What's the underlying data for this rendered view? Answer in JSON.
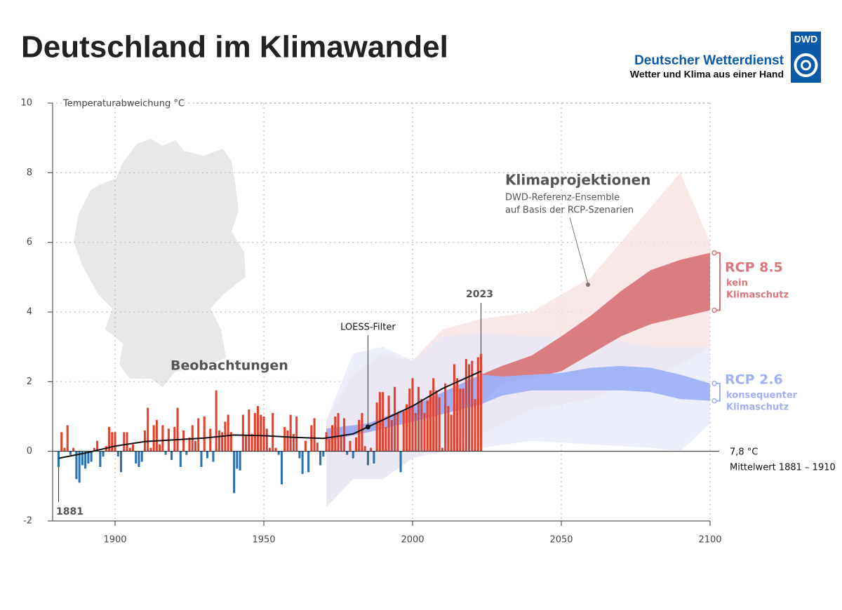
{
  "logo": {
    "abbr": "DWD",
    "name": "Deutscher Wetterdienst",
    "slogan": "Wetter und Klima aus einer Hand"
  },
  "chart_data": {
    "type": "bar",
    "title": "Deutschland im Klimawandel",
    "ylabel": "Temperaturabweichung °C",
    "x": [
      1881,
      1882,
      1883,
      1884,
      1885,
      1886,
      1887,
      1888,
      1889,
      1890,
      1891,
      1892,
      1893,
      1894,
      1895,
      1896,
      1897,
      1898,
      1899,
      1900,
      1901,
      1902,
      1903,
      1904,
      1905,
      1906,
      1907,
      1908,
      1909,
      1910,
      1911,
      1912,
      1913,
      1914,
      1915,
      1916,
      1917,
      1918,
      1919,
      1920,
      1921,
      1922,
      1923,
      1924,
      1925,
      1926,
      1927,
      1928,
      1929,
      1930,
      1931,
      1932,
      1933,
      1934,
      1935,
      1936,
      1937,
      1938,
      1939,
      1940,
      1941,
      1942,
      1943,
      1944,
      1945,
      1946,
      1947,
      1948,
      1949,
      1950,
      1951,
      1952,
      1953,
      1954,
      1955,
      1956,
      1957,
      1958,
      1959,
      1960,
      1961,
      1962,
      1963,
      1964,
      1965,
      1966,
      1967,
      1968,
      1969,
      1970,
      1971,
      1972,
      1973,
      1974,
      1975,
      1976,
      1977,
      1978,
      1979,
      1980,
      1981,
      1982,
      1983,
      1984,
      1985,
      1986,
      1987,
      1988,
      1989,
      1990,
      1991,
      1992,
      1993,
      1994,
      1995,
      1996,
      1997,
      1998,
      1999,
      2000,
      2001,
      2002,
      2003,
      2004,
      2005,
      2006,
      2007,
      2008,
      2009,
      2010,
      2011,
      2012,
      2013,
      2014,
      2015,
      2016,
      2017,
      2018,
      2019,
      2020,
      2021,
      2022,
      2023
    ],
    "values": [
      -0.45,
      0.55,
      0.1,
      0.75,
      -0.1,
      0.1,
      -0.8,
      -0.9,
      -0.4,
      -0.5,
      -0.35,
      -0.3,
      0.1,
      0.3,
      -0.45,
      -0.15,
      0.15,
      0.7,
      0.55,
      0.55,
      -0.15,
      -0.6,
      0.55,
      0.55,
      0.1,
      0.2,
      -0.35,
      -0.45,
      -0.3,
      0.6,
      1.25,
      0.1,
      0.75,
      0.9,
      0.2,
      0.75,
      -0.1,
      0.65,
      -0.25,
      0.7,
      1.25,
      -0.45,
      0.6,
      -0.1,
      0.4,
      0.75,
      0.3,
      0.95,
      -0.45,
      1.0,
      -0.2,
      0.65,
      -0.3,
      1.75,
      0.6,
      0.55,
      0.85,
      1.05,
      0.55,
      -1.2,
      -0.5,
      -0.55,
      1.05,
      0.45,
      1.2,
      0.5,
      1.1,
      1.3,
      1.05,
      1.0,
      0.65,
      0.1,
      1.1,
      0.1,
      -0.1,
      -0.95,
      0.7,
      0.6,
      1.05,
      0.5,
      1.0,
      -0.2,
      -0.65,
      0.3,
      -0.6,
      0.75,
      0.95,
      0.25,
      -0.4,
      -0.15,
      0.55,
      0.35,
      0.75,
      1.0,
      1.1,
      0.45,
      0.95,
      -0.1,
      0.3,
      -0.2,
      0.4,
      0.9,
      1.1,
      0.15,
      -0.4,
      0.1,
      -0.35,
      1.4,
      1.7,
      1.7,
      0.7,
      1.6,
      0.9,
      1.85,
      1.1,
      -0.6,
      1.15,
      1.35,
      1.8,
      2.1,
      1.1,
      1.85,
      1.5,
      1.1,
      1.45,
      1.75,
      2.1,
      1.75,
      1.55,
      0.1,
      1.95,
      1.3,
      1.05,
      2.5,
      2.1,
      1.8,
      1.8,
      2.65,
      2.5,
      2.6,
      1.5,
      2.7,
      2.8
    ],
    "positive_color": "#e2412e",
    "negative_color": "#2b70b1",
    "xlim": [
      1879,
      2100
    ],
    "ylim": [
      -2,
      10
    ],
    "xticks": [
      1900,
      1950,
      2000,
      2050,
      2100
    ],
    "yticks": [
      -2,
      0,
      2,
      4,
      6,
      8,
      10
    ],
    "grid": true,
    "loess": {
      "name": "LOESS-Filter",
      "color": "#111111",
      "x": [
        1881,
        1890,
        1900,
        1910,
        1920,
        1930,
        1940,
        1950,
        1960,
        1970,
        1980,
        1985,
        1990,
        2000,
        2010,
        2023
      ],
      "values": [
        -0.2,
        -0.05,
        0.15,
        0.28,
        0.33,
        0.38,
        0.47,
        0.45,
        0.4,
        0.37,
        0.5,
        0.7,
        0.9,
        1.3,
        1.8,
        2.3
      ]
    },
    "projections": {
      "title": "Klimaprojektionen",
      "subtitle": [
        "DWD-Referenz-Ensemble",
        "auf Basis der RCP-Szenarien"
      ],
      "x": [
        1971,
        1985,
        2000,
        2023,
        2030,
        2040,
        2050,
        2060,
        2070,
        2080,
        2090,
        2100
      ],
      "range_x": [
        1971,
        1980,
        1990,
        2000,
        2010,
        2023,
        2040,
        2060,
        2080,
        2090,
        2100
      ],
      "scenarios": [
        {
          "name": "RCP 8.5",
          "description": [
            "kein",
            "Klimaschutz"
          ],
          "color": "#d9777a",
          "range_color": "#f7e0e0",
          "high": [
            0.65,
            0.8,
            1.3,
            2.2,
            2.45,
            2.75,
            3.3,
            3.9,
            4.6,
            5.2,
            5.5,
            5.7
          ],
          "low": [
            0.3,
            0.55,
            0.85,
            1.35,
            1.95,
            2.1,
            2.3,
            2.8,
            3.3,
            3.65,
            3.85,
            4.05
          ],
          "range_max": [
            0.9,
            2.2,
            2.8,
            2.6,
            3.5,
            3.8,
            4.0,
            5.0,
            7.0,
            8.0,
            6.0
          ],
          "range_min": [
            -1.6,
            -0.8,
            -0.8,
            -0.2,
            0.2,
            0.5,
            1.2,
            1.5,
            2.2,
            2.5,
            3.0
          ]
        },
        {
          "name": "RCP 2.6",
          "description": [
            "konsequenter",
            "Klimaschutz"
          ],
          "color": "#9fb1f5",
          "range_color": "#e6e8f8",
          "high": [
            0.65,
            0.8,
            1.3,
            2.2,
            2.15,
            2.2,
            2.25,
            2.4,
            2.45,
            2.4,
            2.2,
            1.95
          ],
          "low": [
            0.3,
            0.55,
            0.85,
            1.35,
            1.6,
            1.75,
            1.75,
            1.75,
            1.75,
            1.7,
            1.5,
            1.45
          ],
          "range_max": [
            0.9,
            2.8,
            3.0,
            2.6,
            3.3,
            3.4,
            3.3,
            3.3,
            3.0,
            3.0,
            3.0
          ],
          "range_min": [
            -1.6,
            -0.8,
            -0.8,
            -0.2,
            0.0,
            0.1,
            0.3,
            0.2,
            0.1,
            0.0,
            0.8
          ]
        }
      ]
    },
    "annotations": {
      "observations": "Beobachtungen",
      "first_year": "1881",
      "last_year": "2023",
      "baseline": "7,8 °C",
      "baseline_note": "Mittelwert 1881 – 1910"
    }
  }
}
